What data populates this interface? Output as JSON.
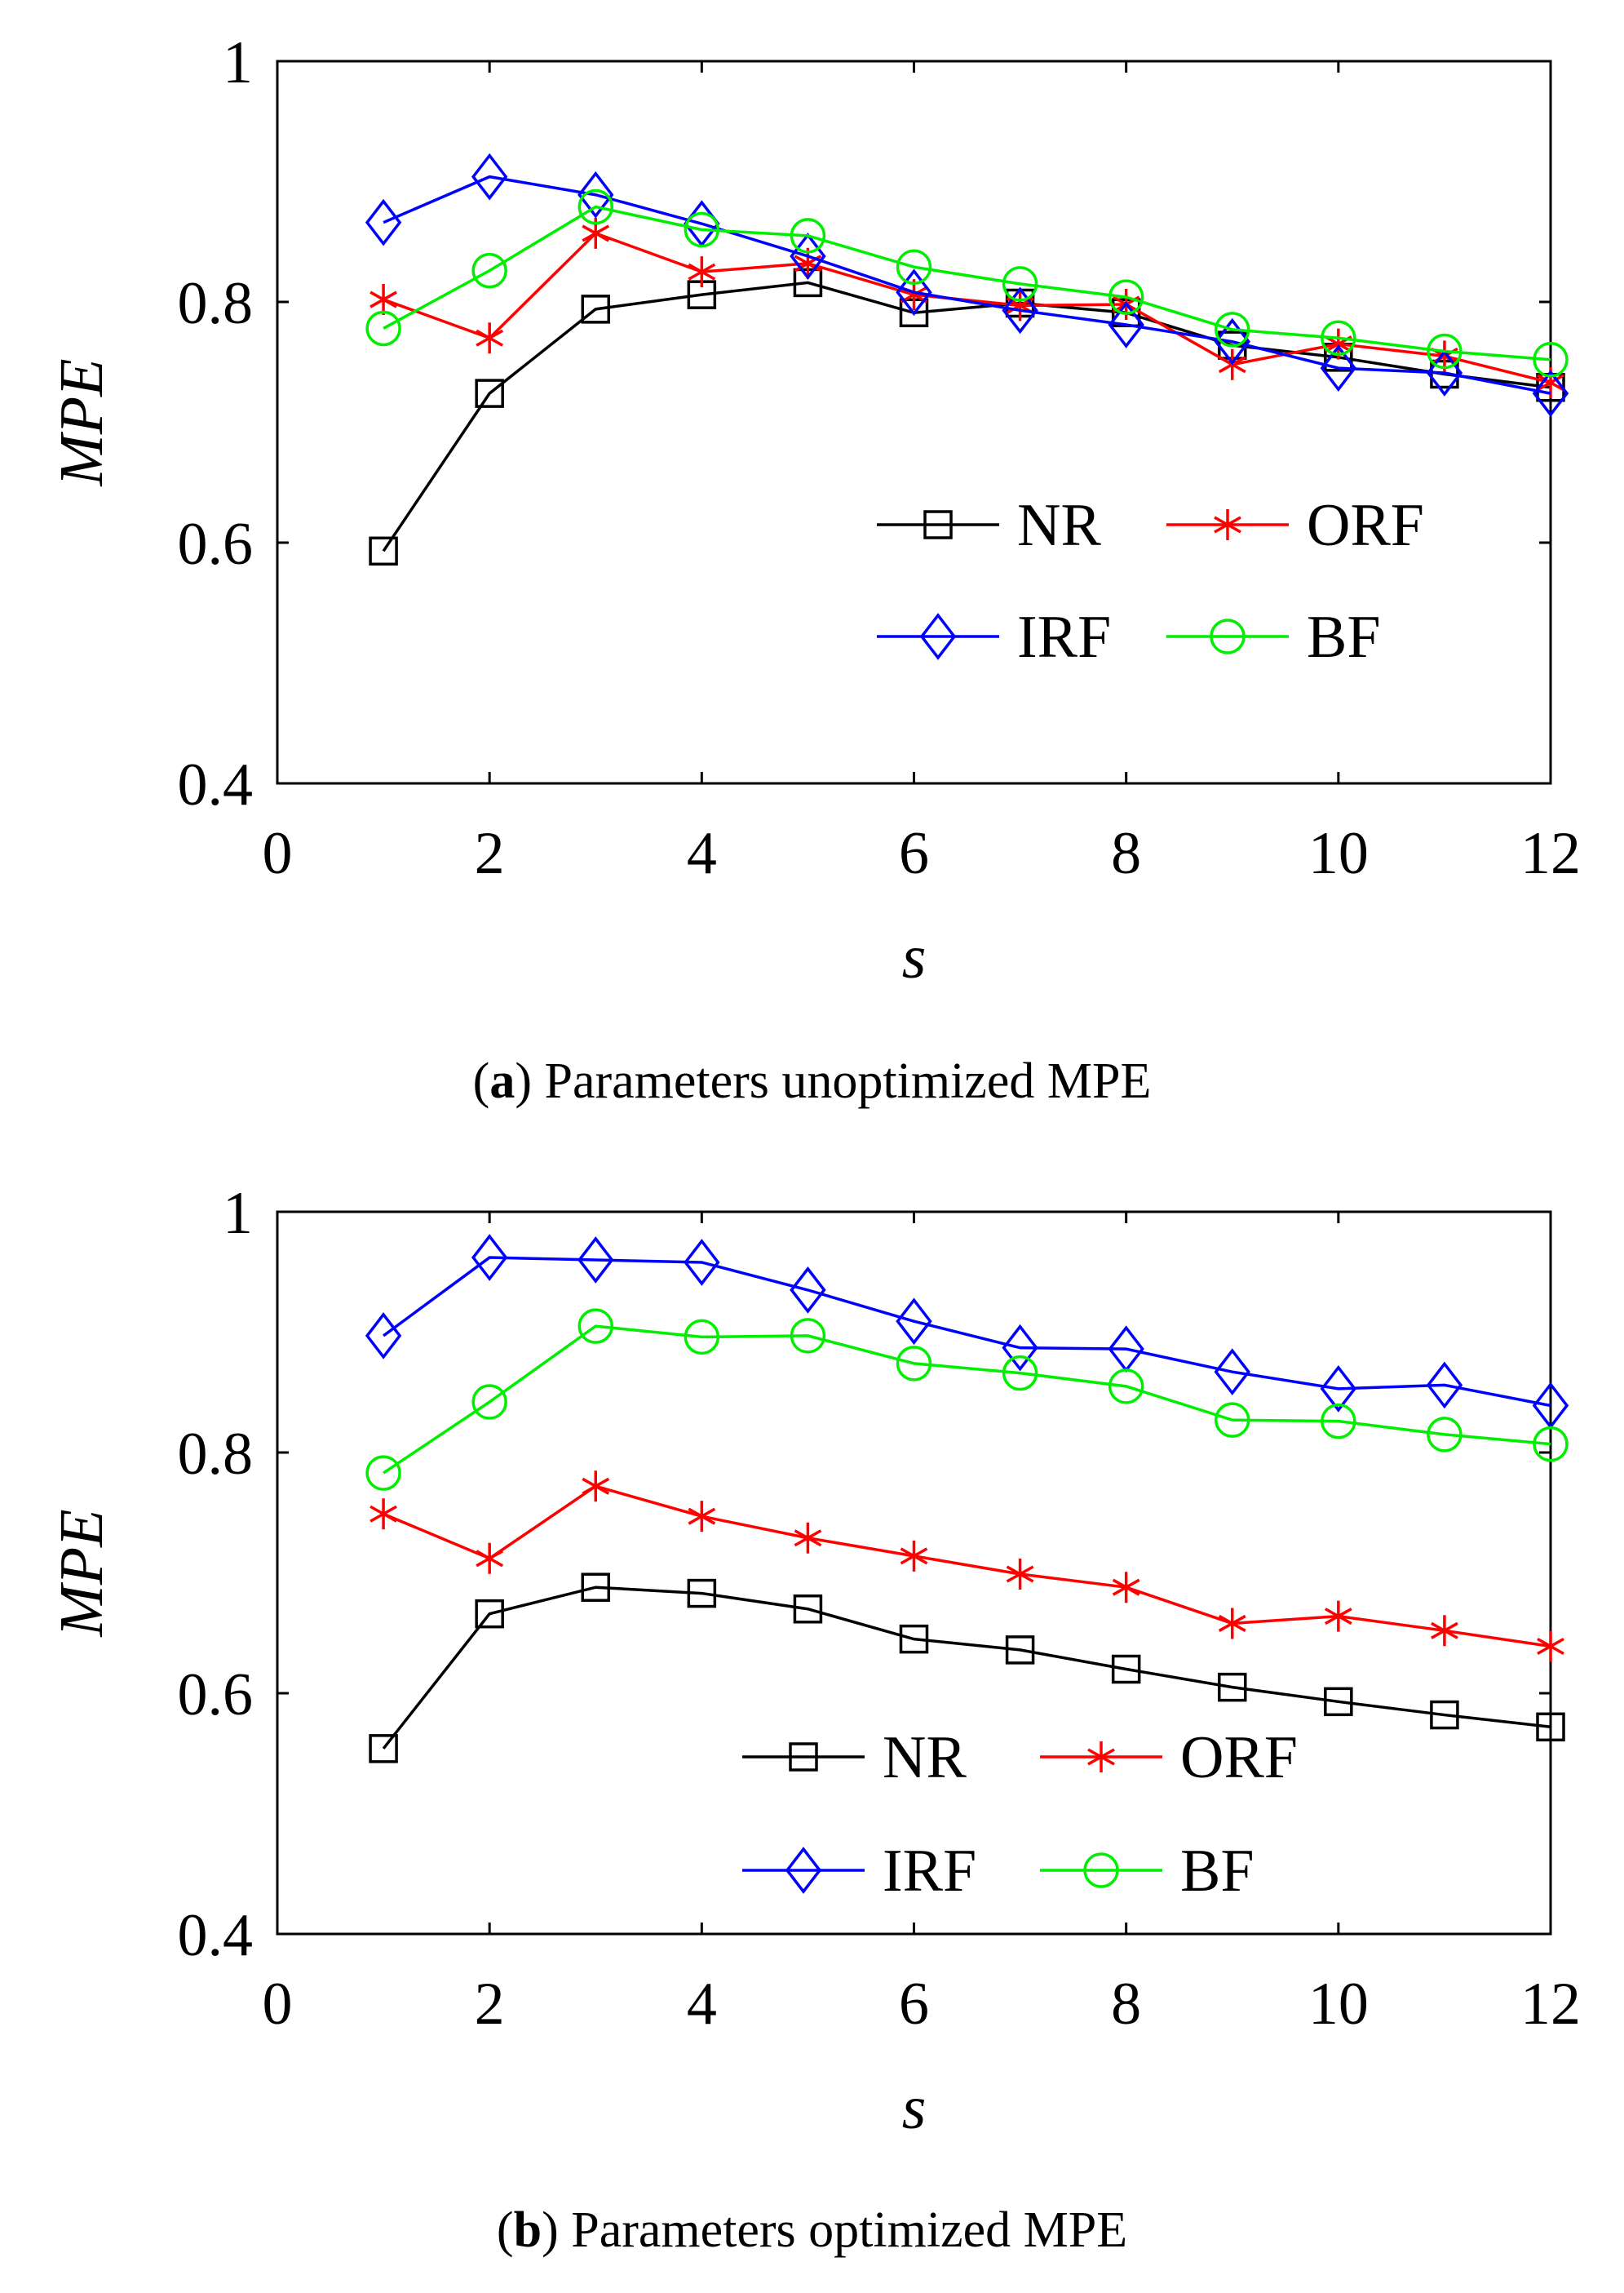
{
  "chart_data": [
    {
      "type": "line",
      "ylabel": "MPE",
      "xlabel": "s",
      "caption_letter": "a",
      "caption_text": "Parameters unoptimized MPE",
      "xlim": [
        0,
        12
      ],
      "ylim": [
        0.4,
        1
      ],
      "xticks": [
        "0",
        "2",
        "4",
        "6",
        "8",
        "10",
        "12"
      ],
      "yticks": [
        "0.4",
        "0.6",
        "0.8",
        "1"
      ],
      "x": [
        1,
        2,
        3,
        4,
        5,
        6,
        7,
        8,
        9,
        10,
        11,
        12
      ],
      "legend_position": "middle-right",
      "series": [
        {
          "name": "NR",
          "color": "#000000",
          "marker": "square",
          "values": [
            0.593,
            0.724,
            0.794,
            0.806,
            0.816,
            0.791,
            0.799,
            0.791,
            0.764,
            0.754,
            0.74,
            0.729
          ]
        },
        {
          "name": "ORF",
          "color": "#ff0000",
          "marker": "asterisk",
          "values": [
            0.802,
            0.77,
            0.857,
            0.825,
            0.832,
            0.806,
            0.797,
            0.798,
            0.748,
            0.765,
            0.755,
            0.733
          ]
        },
        {
          "name": "IRF",
          "color": "#0000ff",
          "marker": "diamond",
          "values": [
            0.866,
            0.904,
            0.889,
            0.865,
            0.838,
            0.808,
            0.793,
            0.781,
            0.767,
            0.745,
            0.741,
            0.724
          ]
        },
        {
          "name": "BF",
          "color": "#00ee00",
          "marker": "circle",
          "values": [
            0.778,
            0.826,
            0.879,
            0.86,
            0.855,
            0.829,
            0.815,
            0.804,
            0.777,
            0.77,
            0.759,
            0.752
          ]
        }
      ]
    },
    {
      "type": "line",
      "ylabel": "MPE",
      "xlabel": "s",
      "caption_letter": "b",
      "caption_text": "Parameters optimized MPE",
      "xlim": [
        0,
        12
      ],
      "ylim": [
        0.4,
        1
      ],
      "xticks": [
        "0",
        "2",
        "4",
        "6",
        "8",
        "10",
        "12"
      ],
      "yticks": [
        "0.4",
        "0.6",
        "0.8",
        "1"
      ],
      "x": [
        1,
        2,
        3,
        4,
        5,
        6,
        7,
        8,
        9,
        10,
        11,
        12
      ],
      "legend_position": "bottom-right",
      "series": [
        {
          "name": "NR",
          "color": "#000000",
          "marker": "square",
          "values": [
            0.554,
            0.666,
            0.688,
            0.683,
            0.67,
            0.645,
            0.636,
            0.62,
            0.605,
            0.593,
            0.582,
            0.572
          ]
        },
        {
          "name": "ORF",
          "color": "#ff0000",
          "marker": "asterisk",
          "values": [
            0.749,
            0.712,
            0.772,
            0.747,
            0.729,
            0.714,
            0.699,
            0.688,
            0.658,
            0.664,
            0.652,
            0.639
          ]
        },
        {
          "name": "IRF",
          "color": "#0000ff",
          "marker": "diamond",
          "values": [
            0.897,
            0.962,
            0.96,
            0.958,
            0.935,
            0.909,
            0.887,
            0.886,
            0.867,
            0.853,
            0.856,
            0.839
          ]
        },
        {
          "name": "BF",
          "color": "#00ee00",
          "marker": "circle",
          "values": [
            0.783,
            0.842,
            0.905,
            0.896,
            0.897,
            0.874,
            0.866,
            0.855,
            0.827,
            0.826,
            0.815,
            0.807
          ]
        }
      ]
    }
  ]
}
